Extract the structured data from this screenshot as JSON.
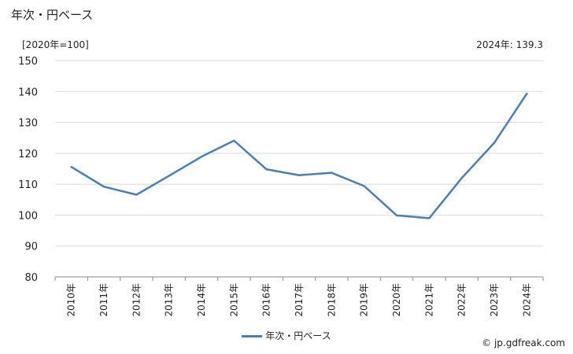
{
  "header": {
    "title": "年次・円ベース",
    "unit": "[2020年=100]",
    "latest": "2024年: 139.3"
  },
  "source": "© jp.gdfreak.com",
  "colors": {
    "line": "#4a7ebb",
    "grid": "#d9d9d9",
    "axis": "#888888"
  },
  "chart_data": {
    "type": "line",
    "title": "",
    "categories": [
      "2010年",
      "2011年",
      "2012年",
      "2013年",
      "2014年",
      "2015年",
      "2016年",
      "2017年",
      "2018年",
      "2019年",
      "2020年",
      "2021年",
      "2022年",
      "2023年",
      "2024年"
    ],
    "series": [
      {
        "name": "年次・円ベース",
        "values": [
          115.6,
          109.2,
          106.6,
          112.7,
          118.9,
          124.1,
          114.8,
          112.9,
          113.7,
          109.4,
          99.9,
          99.0,
          112.0,
          123.4,
          139.3
        ]
      }
    ],
    "ylim": [
      80,
      150
    ],
    "yticks": [
      80,
      90,
      100,
      110,
      120,
      130,
      140,
      150
    ],
    "grid": true,
    "legend": "bottom"
  }
}
